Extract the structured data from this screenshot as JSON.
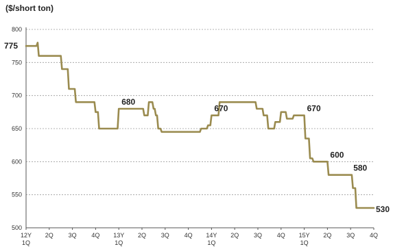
{
  "chart_data": {
    "type": "line",
    "ylabel": "($/short ton)",
    "ylim": [
      500,
      800
    ],
    "yticks": [
      "500",
      "550",
      "600",
      "650",
      "700",
      "750",
      "800"
    ],
    "grid": true,
    "line_color": "#9A8B4F",
    "xticks": [
      [
        "12Y",
        "1Q"
      ],
      [
        "2Q"
      ],
      [
        "3Q"
      ],
      [
        "4Q"
      ],
      [
        "13Y",
        "1Q"
      ],
      [
        "2Q"
      ],
      [
        "3Q"
      ],
      [
        "4Q"
      ],
      [
        "14Y",
        "1Q"
      ],
      [
        "2Q"
      ],
      [
        "3Q"
      ],
      [
        "4Q"
      ],
      [
        "15Y",
        "1Q"
      ],
      [
        "2Q"
      ],
      [
        "3Q"
      ],
      [
        "4Q"
      ]
    ],
    "series": [
      {
        "x": [
          0,
          0.45,
          0.5,
          0.55,
          1.5,
          1.55,
          1.8,
          1.85,
          2.1,
          2.15,
          2.4,
          2.45,
          2.95,
          3.0,
          3.1,
          3.15,
          3.5,
          3.55,
          3.95,
          4.0,
          4.0,
          4.35,
          5.05,
          5.1,
          5.25,
          5.3,
          5.45,
          5.5,
          5.55,
          5.6,
          5.65,
          5.7,
          5.8,
          5.85,
          5.95,
          6.0,
          7.5,
          7.55,
          7.8,
          7.85,
          7.95,
          8.0,
          8.1,
          8.15,
          8.3,
          8.35,
          9.9,
          9.95,
          10.2,
          10.25,
          10.4,
          10.45,
          10.7,
          10.75,
          10.95,
          11.0,
          11.2,
          11.25,
          11.5,
          11.55,
          12.0,
          12.05,
          12.2,
          12.25,
          12.35,
          12.4,
          13.0,
          13.05,
          13.95,
          14.0,
          14.05,
          14.1,
          14.2,
          14.25,
          15.0
        ],
        "y": [
          775,
          775,
          780,
          760,
          760,
          740,
          740,
          710,
          710,
          690,
          690,
          690,
          690,
          675,
          675,
          650,
          650,
          650,
          650,
          680,
          680,
          680,
          680,
          670,
          670,
          690,
          690,
          680,
          680,
          670,
          670,
          650,
          650,
          645,
          645,
          645,
          645,
          650,
          650,
          655,
          655,
          670,
          670,
          670,
          670,
          690,
          690,
          680,
          680,
          670,
          670,
          650,
          650,
          660,
          660,
          675,
          675,
          665,
          665,
          670,
          670,
          635,
          635,
          605,
          605,
          600,
          600,
          580,
          580,
          580,
          580,
          560,
          560,
          530,
          530
        ]
      }
    ],
    "data_labels": [
      {
        "x": 0.0,
        "y": 775,
        "text": "775"
      },
      {
        "x": 4.0,
        "y": 680,
        "text": "680"
      },
      {
        "x": 8.0,
        "y": 670,
        "text": "670"
      },
      {
        "x": 12.0,
        "y": 670,
        "text": "670"
      },
      {
        "x": 13.0,
        "y": 600,
        "text": "600"
      },
      {
        "x": 14.0,
        "y": 580,
        "text": "580"
      },
      {
        "x": 15.0,
        "y": 530,
        "text": "530"
      }
    ]
  }
}
